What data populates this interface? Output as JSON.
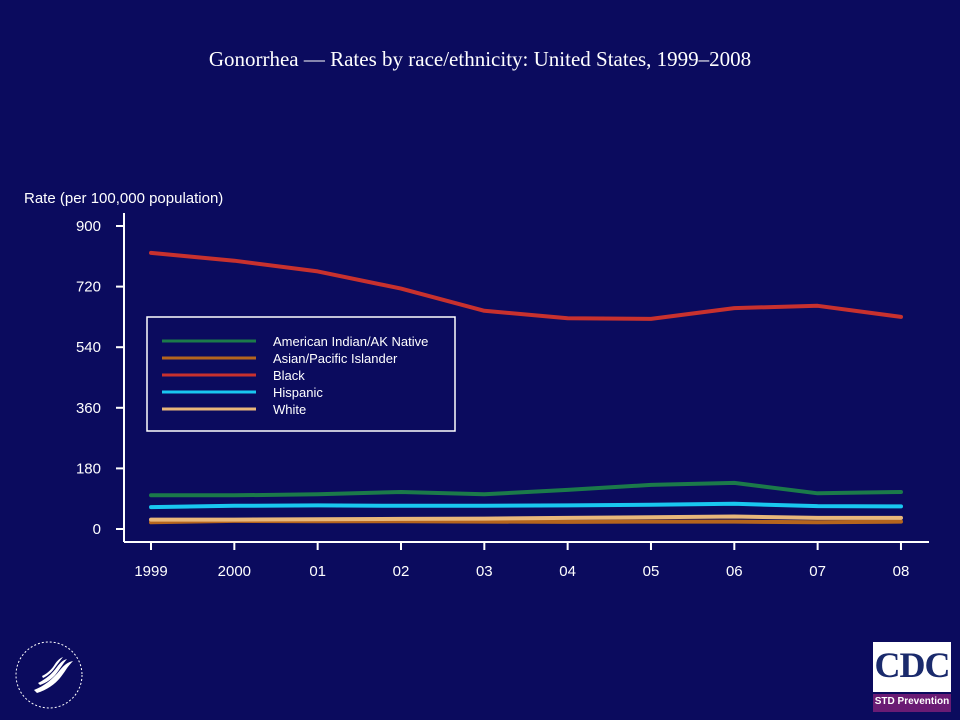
{
  "slide": {
    "background": "#0b0b5e"
  },
  "chart_data": {
    "type": "line",
    "title": "Gonorrhea — Rates by race/ethnicity: United States, 1999–2008",
    "ylabel": "Rate (per 100,000 population)",
    "xlabel": "",
    "categories": [
      "1999",
      "2000",
      "01",
      "02",
      "03",
      "04",
      "05",
      "06",
      "07",
      "08"
    ],
    "ylim": [
      0,
      900
    ],
    "yticks": [
      0,
      180,
      360,
      540,
      720,
      900
    ],
    "legend_position": "upper-left",
    "grid": false,
    "series": [
      {
        "name": "American Indian/AK Native",
        "color": "#1b7a4a",
        "values": [
          100,
          100,
          103,
          110,
          103,
          116,
          131,
          137,
          106,
          110
        ]
      },
      {
        "name": "Asian/Pacific Islander",
        "color": "#b5651d",
        "values": [
          20,
          24,
          23,
          23,
          22,
          21,
          22,
          22,
          20,
          22
        ]
      },
      {
        "name": "Black",
        "color": "#c8312e",
        "values": [
          820,
          797,
          765,
          714,
          648,
          626,
          624,
          656,
          663,
          630
        ]
      },
      {
        "name": "Hispanic",
        "color": "#19c7f0",
        "values": [
          65,
          69,
          70,
          69,
          69,
          70,
          72,
          75,
          68,
          67
        ]
      },
      {
        "name": "White",
        "color": "#e8b77a",
        "values": [
          28,
          28,
          29,
          30,
          31,
          33,
          35,
          37,
          33,
          33
        ]
      }
    ]
  },
  "logos": {
    "cdc_text": "CDC",
    "cdc_sub": "STD Prevention",
    "hhs_icon": "hhs-eagle-icon"
  }
}
